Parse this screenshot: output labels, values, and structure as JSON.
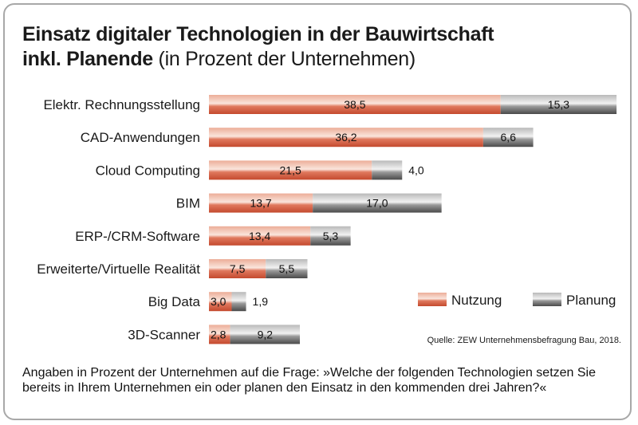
{
  "header": {
    "title_line1": "Einsatz digitaler Technologien in der Bauwirtschaft",
    "title_line2_bold": "inkl. Planende",
    "title_line2_normal": " (in Prozent der Unternehmen)"
  },
  "footnote": "Angaben in Prozent der Unternehmen auf die Frage: »Welche der folgenden Technologien setzen Sie bereits in Ihrem Unternehmen ein oder planen den Einsatz in den kommenden drei Jahren?«",
  "chart_data": {
    "type": "bar",
    "orientation": "horizontal",
    "stacked": true,
    "title": "Einsatz digitaler Technologien in der Bauwirtschaft inkl. Planende (in Prozent der Unternehmen)",
    "categories": [
      "Elektr. Rechnungsstellung",
      "CAD-Anwendungen",
      "Cloud Computing",
      "BIM",
      "ERP-/CRM-Software",
      "Erweiterte/Virtuelle Realität",
      "Big Data",
      "3D-Scanner"
    ],
    "series": [
      {
        "name": "Nutzung",
        "values": [
          38.5,
          36.2,
          21.5,
          13.7,
          13.4,
          7.5,
          3.0,
          2.8
        ],
        "labels": [
          "38,5",
          "36,2",
          "21,5",
          "13,7",
          "13,4",
          "7,5",
          "3,0",
          "2,8"
        ],
        "color": "#d2553a"
      },
      {
        "name": "Planung",
        "values": [
          15.3,
          6.6,
          4.0,
          17.0,
          5.3,
          5.5,
          1.9,
          9.2
        ],
        "labels": [
          "15,3",
          "6,6",
          "4,0",
          "17,0",
          "5,3",
          "5,5",
          "1,9",
          "9,2"
        ],
        "color": "#6b6b6b"
      }
    ],
    "xlim": [
      0,
      53.8
    ],
    "grid": false,
    "legend_position": "bottom-right",
    "source": "Quelle: ZEW Unternehmensbefragung Bau, 2018."
  }
}
